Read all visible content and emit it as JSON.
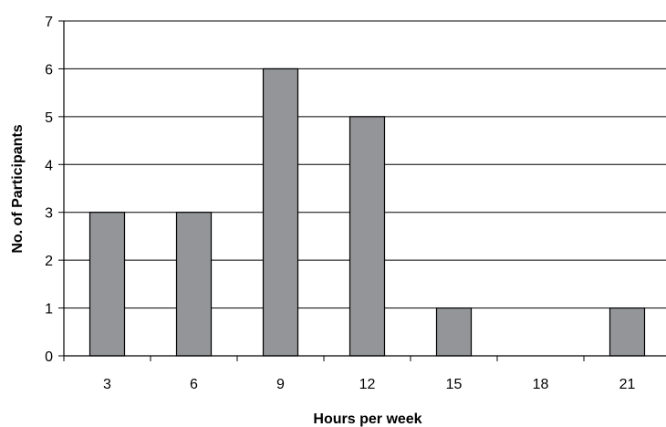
{
  "chart_data": {
    "type": "bar",
    "title": "",
    "xlabel": "Hours per week",
    "ylabel": "No. of Participants",
    "categories": [
      "3",
      "6",
      "9",
      "12",
      "15",
      "18",
      "21"
    ],
    "values": [
      3,
      3,
      6,
      5,
      1,
      0,
      1
    ],
    "ylim": [
      0,
      7
    ],
    "yticks": [
      "0",
      "1",
      "2",
      "3",
      "4",
      "5",
      "6",
      "7"
    ],
    "grid": "horizontal",
    "legend": "none",
    "bar_color": "#939598",
    "bar_stroke": "#000000",
    "grid_color": "#000000"
  }
}
